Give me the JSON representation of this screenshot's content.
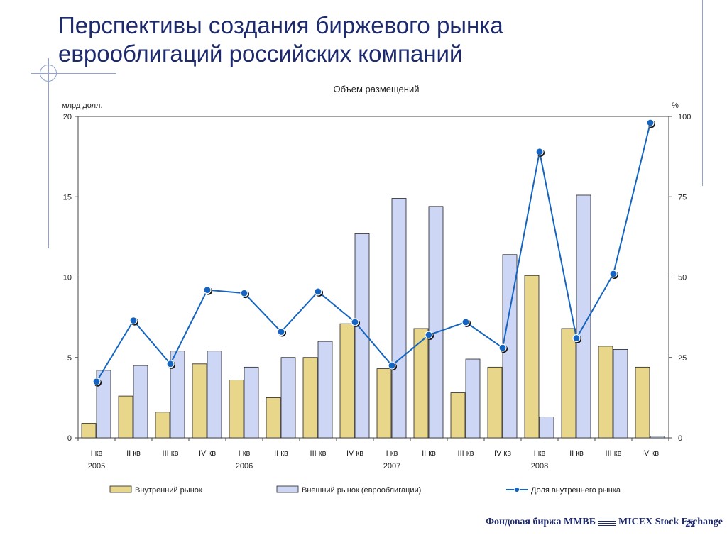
{
  "slide": {
    "title_line1": "Перспективы создания биржевого рынка",
    "title_line2": "еврооблигаций российских компаний",
    "footer_left": "Фондовая биржа ММВБ",
    "footer_right": "MICEX Stock Exchange",
    "page_number": "21"
  },
  "colors": {
    "domestic": "#e8d68a",
    "foreign": "#cdd6f5",
    "bar_border": "#222222",
    "line": "#1565c0",
    "title": "#1e2a6e",
    "decor": "#8fa3cf"
  },
  "chart_data": {
    "type": "bar",
    "title": "Объем размещений",
    "ylabel": "млрд долл.",
    "y2label": "%",
    "ylim": [
      0,
      20
    ],
    "y2lim": [
      0,
      100
    ],
    "yticks": [
      "0",
      "5",
      "10",
      "15",
      "20"
    ],
    "y2ticks": [
      "0",
      "25",
      "50",
      "75",
      "100"
    ],
    "categories": [
      "I кв",
      "II кв",
      "III кв",
      "IV кв",
      "I кв",
      "II кв",
      "III кв",
      "IV кв",
      "I кв",
      "II кв",
      "III кв",
      "IV кв",
      "I кв",
      "II кв",
      "III кв",
      "IV кв"
    ],
    "years": [
      "2005",
      "2006",
      "2007",
      "2008"
    ],
    "series": [
      {
        "name": "Внутренний рынок",
        "type": "bar",
        "axis": "left",
        "values": [
          0.9,
          2.6,
          1.6,
          4.6,
          3.6,
          2.5,
          5.0,
          7.1,
          4.3,
          6.8,
          2.8,
          4.4,
          10.1,
          6.8,
          5.7,
          4.4
        ]
      },
      {
        "name": "Внешний рынок (еврооблигации)",
        "type": "bar",
        "axis": "left",
        "values": [
          4.2,
          4.5,
          5.4,
          5.4,
          4.4,
          5.0,
          6.0,
          12.7,
          14.9,
          14.4,
          4.9,
          11.4,
          1.3,
          15.1,
          5.5,
          0.1
        ]
      },
      {
        "name": "Доля внутреннего рынка",
        "type": "line",
        "axis": "right",
        "values": [
          17.5,
          36.5,
          23,
          46,
          45,
          33,
          45.5,
          36,
          22.5,
          32,
          36,
          28,
          89,
          31,
          51,
          98
        ]
      }
    ],
    "grid": false,
    "legend": "bottom"
  }
}
